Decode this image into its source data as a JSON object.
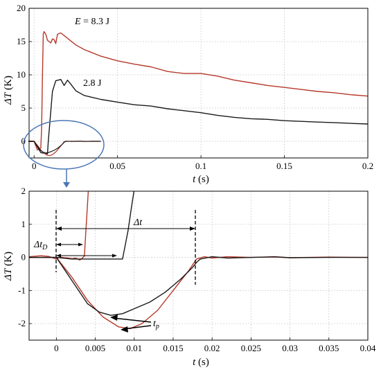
{
  "chart_data": [
    {
      "type": "line",
      "xlabel_symbol": "t",
      "xlabel_unit": "(s)",
      "ylabel_symbol": "ΔT",
      "ylabel_unit": "(K)",
      "xlim": [
        -0.003,
        0.2
      ],
      "ylim": [
        -2.5,
        20
      ],
      "xticks": [
        0,
        0.05,
        0.1,
        0.15,
        0.2
      ],
      "xtick_labels": [
        "0",
        "0.05",
        "0.1",
        "0.15",
        "0.2"
      ],
      "yticks": [
        0,
        5,
        10,
        15,
        20
      ],
      "ytick_labels": [
        "0",
        "5",
        "10",
        "15",
        "20"
      ],
      "grid": true,
      "series": [
        {
          "name": "E = 8.3 J",
          "color": "#b5382b",
          "x": [
            -0.003,
            0.0,
            0.002,
            0.004,
            0.0045,
            0.005,
            0.0055,
            0.006,
            0.007,
            0.008,
            0.009,
            0.01,
            0.011,
            0.012,
            0.013,
            0.014,
            0.016,
            0.018,
            0.02,
            0.025,
            0.03,
            0.04,
            0.05,
            0.06,
            0.07,
            0.08,
            0.09,
            0.1,
            0.11,
            0.12,
            0.13,
            0.14,
            0.15,
            0.16,
            0.17,
            0.18,
            0.19,
            0.2
          ],
          "y": [
            0,
            0,
            -1.3,
            -1.0,
            2,
            10,
            16.2,
            16.5,
            16.1,
            15.2,
            15.0,
            14.8,
            15.4,
            15.3,
            14.7,
            16.1,
            16.3,
            15.9,
            15.5,
            14.5,
            13.8,
            12.8,
            12.1,
            11.6,
            11.2,
            10.5,
            10.2,
            10.2,
            9.8,
            9.2,
            8.8,
            8.4,
            8.1,
            7.8,
            7.5,
            7.3,
            7.0,
            6.8
          ]
        },
        {
          "name": "2.8 J",
          "color": "#1a1a1a",
          "x": [
            -0.003,
            0.0,
            0.004,
            0.008,
            0.0085,
            0.011,
            0.013,
            0.016,
            0.018,
            0.02,
            0.022,
            0.025,
            0.03,
            0.04,
            0.05,
            0.06,
            0.07,
            0.08,
            0.09,
            0.1,
            0.11,
            0.12,
            0.13,
            0.14,
            0.15,
            0.16,
            0.17,
            0.18,
            0.19,
            0.2
          ],
          "y": [
            0,
            0,
            -1.7,
            -1.9,
            0,
            7.5,
            9.1,
            9.3,
            8.4,
            9.2,
            8.6,
            7.6,
            6.9,
            6.3,
            5.9,
            5.5,
            5.3,
            4.9,
            4.6,
            4.3,
            3.9,
            3.6,
            3.4,
            3.3,
            3.1,
            3.0,
            2.9,
            2.8,
            2.7,
            2.6
          ]
        }
      ],
      "annotations": {
        "e_symbol": "E",
        "e_value": " = 8.3 J",
        "second": "2.8 J"
      }
    },
    {
      "type": "line",
      "xlabel_symbol": "t",
      "xlabel_unit": "(s)",
      "ylabel_symbol": "ΔT",
      "ylabel_unit": "(K)",
      "xlim": [
        -0.0035,
        0.04
      ],
      "ylim": [
        -2.5,
        2
      ],
      "xticks": [
        0,
        0.005,
        0.01,
        0.015,
        0.02,
        0.025,
        0.03,
        0.035,
        0.04
      ],
      "xtick_labels": [
        "0",
        "0.005",
        "0.01",
        "0.015",
        "0.02",
        "0.025",
        "0.03",
        "0.035",
        "0.04"
      ],
      "yticks": [
        -2,
        -1,
        0,
        1,
        2
      ],
      "ytick_labels": [
        "-2",
        "-1",
        "0",
        "1",
        "2"
      ],
      "grid": true,
      "series": [
        {
          "name": "E = 8.3 J",
          "color": "#b5382b",
          "x": [
            -0.0035,
            -0.002,
            -0.001,
            0.0,
            0.0005,
            0.001,
            0.0015,
            0.002,
            0.0025,
            0.003,
            0.0033,
            0.0036,
            0.0042,
            0.0044
          ],
          "y": [
            0.02,
            0.05,
            0.03,
            -0.05,
            0.01,
            -0.01,
            -0.02,
            -0.04,
            -0.02,
            -0.08,
            -0.03,
            0.04,
            2.4,
            2.8
          ],
          "y2_x": [
            -0.0035,
            0.0,
            0.002,
            0.004,
            0.006,
            0.008,
            0.0095,
            0.011,
            0.013,
            0.015,
            0.017,
            0.018,
            0.019,
            0.02,
            0.022,
            0.025,
            0.028,
            0.03,
            0.035,
            0.04
          ],
          "y2": [
            0.0,
            0.0,
            -0.6,
            -1.3,
            -1.8,
            -2.1,
            -2.15,
            -2.0,
            -1.6,
            -1.0,
            -0.4,
            -0.05,
            0.02,
            -0.02,
            0.02,
            0.0,
            0.01,
            -0.01,
            0.01,
            0.0
          ]
        },
        {
          "name": "2.8 J",
          "color": "#1a1a1a",
          "x": [
            -0.0035,
            -0.002,
            -0.001,
            0.0,
            0.002,
            0.004,
            0.006,
            0.0075,
            0.0085,
            0.0092,
            0.0097,
            0.0101,
            0.0105
          ],
          "y": [
            0.0,
            0.0,
            0.0,
            0.0,
            -0.05,
            -0.05,
            -0.05,
            -0.05,
            -0.05,
            0.8,
            1.6,
            2.2,
            2.8
          ],
          "y2_x": [
            -0.0035,
            0.0,
            0.002,
            0.004,
            0.0055,
            0.007,
            0.0085,
            0.01,
            0.012,
            0.014,
            0.016,
            0.0175,
            0.018,
            0.0185,
            0.02,
            0.022,
            0.025,
            0.028,
            0.03,
            0.035,
            0.04
          ],
          "y2": [
            0.0,
            0.0,
            -0.7,
            -1.4,
            -1.65,
            -1.75,
            -1.7,
            -1.55,
            -1.35,
            -1.05,
            -0.65,
            -0.3,
            -0.15,
            -0.05,
            0.02,
            -0.02,
            0.0,
            0.02,
            -0.01,
            0.0,
            0.0
          ]
        }
      ],
      "annotations": {
        "delta_t": "Δt",
        "delta_td_main": "Δt",
        "delta_td_sub": "D",
        "tp_main": "t",
        "tp_sub": "p"
      }
    }
  ]
}
